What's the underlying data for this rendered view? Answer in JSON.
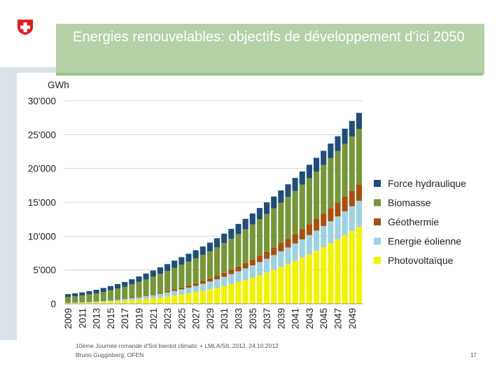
{
  "slide": {
    "title": "Energies renouvelables: objectifs de développement d’ici 2050",
    "source_line1": "10ème Journée romande d'Sol bientot climatic + LMLA/SIL 2012, 24.10.2012",
    "source_line2": "Bruno Guggisberg, OFEN",
    "page_number": "17"
  },
  "colors": {
    "title_bar": "#b6d0a7",
    "swiss_red": "#e11d22"
  },
  "chart_data": {
    "type": "bar",
    "stacked": true,
    "title": "",
    "xlabel": "",
    "ylabel": "GWh",
    "ylim": [
      0,
      30000
    ],
    "yticks": [
      0,
      5000,
      10000,
      15000,
      20000,
      25000,
      30000
    ],
    "ytick_labels": [
      "0",
      "5'000",
      "10'000",
      "15'000",
      "20'000",
      "25'000",
      "30'000"
    ],
    "grid": true,
    "legend_position": "right",
    "categories": [
      "2009",
      "2010",
      "2011",
      "2012",
      "2013",
      "2014",
      "2015",
      "2016",
      "2017",
      "2018",
      "2019",
      "2020",
      "2021",
      "2022",
      "2023",
      "2024",
      "2025",
      "2026",
      "2027",
      "2028",
      "2029",
      "2030",
      "2031",
      "2032",
      "2033",
      "2034",
      "2035",
      "2036",
      "2037",
      "2038",
      "2039",
      "2040",
      "2041",
      "2042",
      "2043",
      "2044",
      "2045",
      "2046",
      "2047",
      "2048",
      "2049",
      "2050"
    ],
    "xtick_labels": [
      "2009",
      "2011",
      "2013",
      "2015",
      "2017",
      "2019",
      "2021",
      "2023",
      "2025",
      "2027",
      "2029",
      "2031",
      "2033",
      "2035",
      "2037",
      "2039",
      "2041",
      "2043",
      "2045",
      "2047",
      "2049"
    ],
    "series": [
      {
        "name": "Photovoltaïque",
        "color": "#f2f200",
        "values": [
          100,
          130,
          160,
          190,
          230,
          270,
          320,
          380,
          450,
          530,
          620,
          720,
          830,
          950,
          1080,
          1220,
          1370,
          1540,
          1720,
          1920,
          2140,
          2380,
          2640,
          2920,
          3220,
          3540,
          3880,
          4240,
          4620,
          5020,
          5440,
          5880,
          6340,
          6820,
          7320,
          7840,
          8380,
          8940,
          9520,
          10120,
          10740,
          11380
        ]
      },
      {
        "name": "Energie éolienne",
        "color": "#9ed2e2",
        "values": [
          30,
          40,
          60,
          80,
          100,
          130,
          160,
          200,
          240,
          290,
          340,
          400,
          460,
          530,
          600,
          680,
          760,
          850,
          940,
          1040,
          1140,
          1240,
          1350,
          1460,
          1570,
          1690,
          1810,
          1930,
          2050,
          2180,
          2310,
          2440,
          2570,
          2700,
          2840,
          2980,
          3120,
          3260,
          3400,
          3540,
          3690,
          3840
        ]
      },
      {
        "name": "Géothermie",
        "color": "#a8500e",
        "values": [
          0,
          0,
          0,
          0,
          0,
          10,
          20,
          30,
          40,
          60,
          80,
          100,
          130,
          160,
          190,
          230,
          270,
          310,
          360,
          410,
          460,
          520,
          580,
          640,
          710,
          780,
          860,
          940,
          1020,
          1110,
          1200,
          1290,
          1390,
          1490,
          1590,
          1700,
          1810,
          1930,
          2050,
          2170,
          2300,
          2440
        ]
      },
      {
        "name": "Biomasse",
        "color": "#77963a",
        "values": [
          900,
          950,
          1000,
          1100,
          1200,
          1350,
          1500,
          1650,
          1800,
          2000,
          2200,
          2400,
          2600,
          2800,
          3000,
          3200,
          3400,
          3550,
          3700,
          3850,
          4000,
          4200,
          4400,
          4600,
          4800,
          5000,
          5200,
          5400,
          5600,
          5800,
          6000,
          6200,
          6400,
          6600,
          6800,
          7000,
          7200,
          7400,
          7600,
          7800,
          8000,
          8200
        ]
      },
      {
        "name": "Force hydraulique",
        "color": "#1f4e79",
        "values": [
          400,
          430,
          460,
          500,
          540,
          580,
          620,
          660,
          700,
          750,
          800,
          850,
          900,
          950,
          1000,
          1050,
          1100,
          1150,
          1200,
          1250,
          1300,
          1350,
          1400,
          1450,
          1500,
          1550,
          1600,
          1650,
          1700,
          1750,
          1800,
          1850,
          1900,
          1950,
          2000,
          2050,
          2100,
          2150,
          2200,
          2250,
          2300,
          2350
        ]
      }
    ]
  }
}
